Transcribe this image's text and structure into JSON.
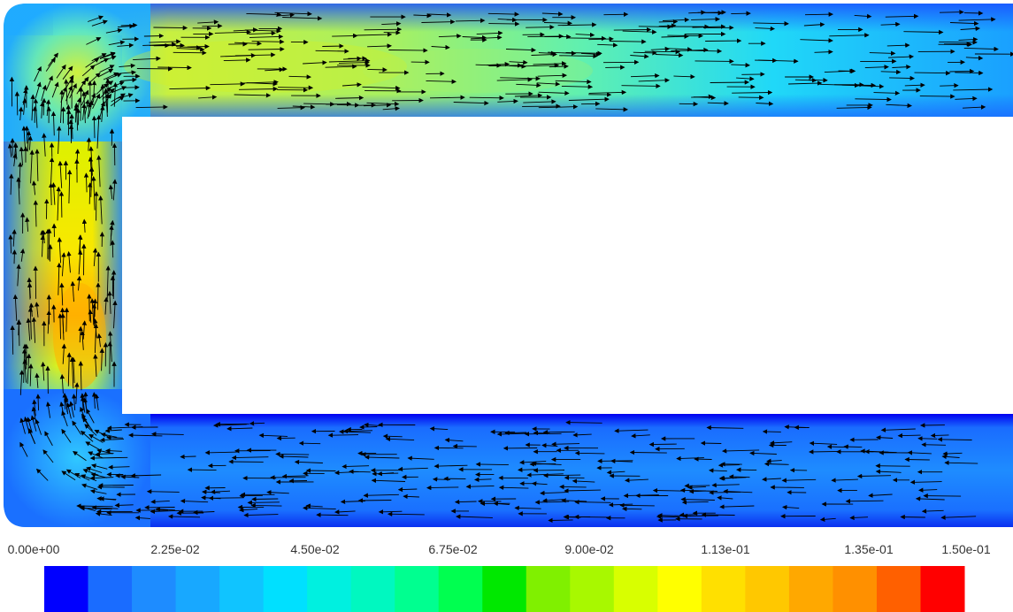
{
  "chart_data": {
    "type": "heatmap",
    "title": "",
    "xlabel": "",
    "ylabel": "",
    "legend": "colorbar-bottom",
    "grid": false,
    "colorbar": {
      "min": 0.0,
      "max": 0.15,
      "tick_labels": [
        "0.00e+00",
        "2.25e-02",
        "4.50e-02",
        "6.75e-02",
        "9.00e-02",
        "1.13e-01",
        "1.35e-01",
        "1.50e-01"
      ],
      "tick_values": [
        0.0,
        0.0225,
        0.045,
        0.0675,
        0.09,
        0.1125,
        0.135,
        0.15
      ],
      "colors": [
        "#0000ff",
        "#1a6cff",
        "#1e8cff",
        "#18a8ff",
        "#10c4ff",
        "#00e0ff",
        "#00f0e0",
        "#00f8c0",
        "#00ff90",
        "#00ff50",
        "#00e800",
        "#80f000",
        "#a8f800",
        "#d8ff00",
        "#ffff00",
        "#ffe000",
        "#ffc800",
        "#ffa800",
        "#ff9000",
        "#ff6000",
        "#ff0000"
      ]
    },
    "regions": [
      {
        "name": "top-channel",
        "flow_direction": "right",
        "velocity_range": [
          0.02,
          0.09
        ]
      },
      {
        "name": "left-channel",
        "flow_direction": "up",
        "velocity_range": [
          0.02,
          0.11
        ]
      },
      {
        "name": "bottom-channel",
        "flow_direction": "left",
        "velocity_range": [
          0.0,
          0.04
        ]
      }
    ]
  }
}
